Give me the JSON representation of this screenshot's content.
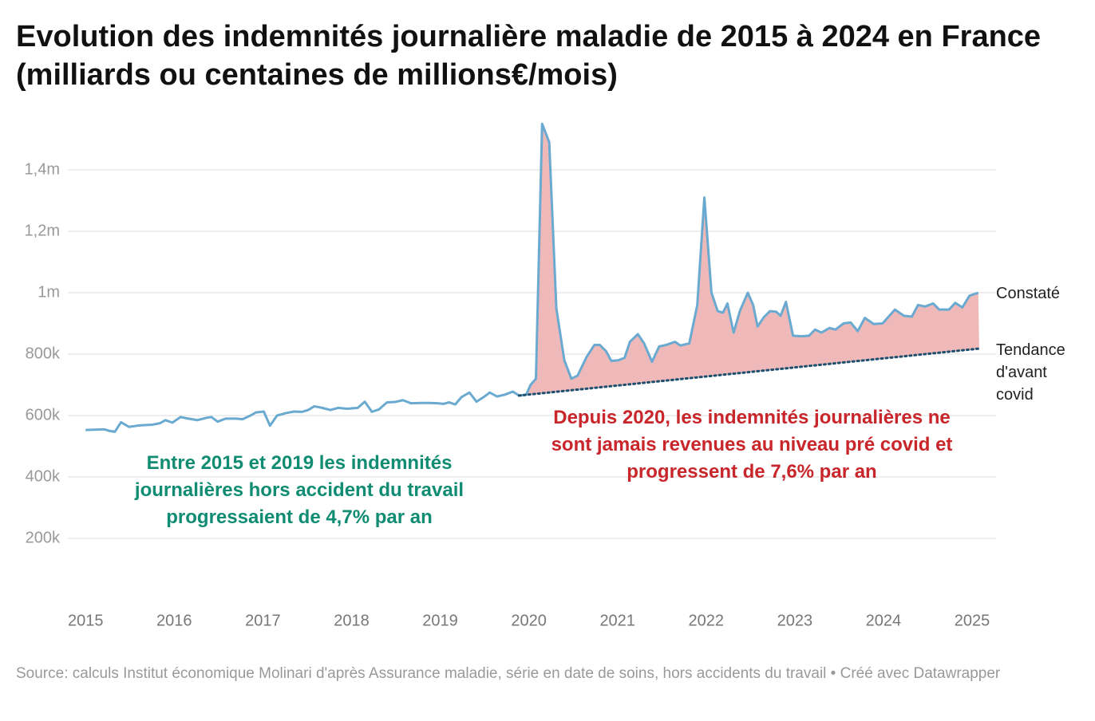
{
  "chart_data": {
    "type": "line",
    "title": "Evolution des indemnités journalière maladie de 2015 à 2024 en France (milliards ou centaines de millions€/mois)",
    "xlim": [
      2014.8,
      2025.27
    ],
    "xticks": [
      2015,
      2016,
      2017,
      2018,
      2019,
      2020,
      2021,
      2022,
      2023,
      2024,
      2025
    ],
    "ylim": [
      0,
      1600000
    ],
    "yticks": [
      {
        "value": 200000,
        "label": "200k"
      },
      {
        "value": 400000,
        "label": "400k"
      },
      {
        "value": 600000,
        "label": "600k"
      },
      {
        "value": 800000,
        "label": "800k"
      },
      {
        "value": 1000000,
        "label": "1m"
      },
      {
        "value": 1200000,
        "label": "1,2m"
      },
      {
        "value": 1400000,
        "label": "1,4m"
      }
    ],
    "grid": true,
    "area_color": "#f0b9b9",
    "series": [
      {
        "name": "Constaté",
        "color": "#6aaad0",
        "x": [
          2015.0,
          2015.1,
          2015.21,
          2015.27,
          2015.33,
          2015.4,
          2015.49,
          2015.61,
          2015.75,
          2015.84,
          2015.9,
          2015.98,
          2016.07,
          2016.16,
          2016.26,
          2016.37,
          2016.42,
          2016.49,
          2016.58,
          2016.7,
          2016.77,
          2016.86,
          2016.92,
          2017.01,
          2017.08,
          2017.16,
          2017.26,
          2017.35,
          2017.44,
          2017.51,
          2017.58,
          2017.67,
          2017.76,
          2017.85,
          2017.95,
          2018.07,
          2018.15,
          2018.23,
          2018.31,
          2018.4,
          2018.49,
          2018.58,
          2018.67,
          2018.79,
          2018.88,
          2018.97,
          2019.04,
          2019.1,
          2019.17,
          2019.24,
          2019.33,
          2019.41,
          2019.49,
          2019.56,
          2019.64,
          2019.73,
          2019.82,
          2019.89,
          2019.97,
          2020.02,
          2020.08,
          2020.15,
          2020.23,
          2020.31,
          2020.4,
          2020.48,
          2020.55,
          2020.65,
          2020.74,
          2020.8,
          2020.87,
          2020.93,
          2021.01,
          2021.08,
          2021.14,
          2021.23,
          2021.3,
          2021.39,
          2021.47,
          2021.55,
          2021.65,
          2021.71,
          2021.81,
          2021.9,
          2021.98,
          2022.06,
          2022.13,
          2022.19,
          2022.24,
          2022.31,
          2022.38,
          2022.47,
          2022.53,
          2022.58,
          2022.65,
          2022.72,
          2022.79,
          2022.84,
          2022.9,
          2022.98,
          2023.08,
          2023.16,
          2023.23,
          2023.3,
          2023.39,
          2023.46,
          2023.55,
          2023.63,
          2023.71,
          2023.79,
          2023.89,
          2023.99,
          2024.13,
          2024.23,
          2024.32,
          2024.39,
          2024.47,
          2024.56,
          2024.63,
          2024.74,
          2024.81,
          2024.89,
          2024.97,
          2025.07
        ],
        "values": [
          553000,
          554000,
          555000,
          550000,
          547000,
          578000,
          563000,
          568000,
          570000,
          575000,
          585000,
          577000,
          595000,
          590000,
          585000,
          593000,
          595000,
          580000,
          590000,
          590000,
          588000,
          600000,
          610000,
          613000,
          567000,
          600000,
          608000,
          613000,
          612000,
          618000,
          630000,
          625000,
          618000,
          625000,
          622000,
          625000,
          645000,
          612000,
          620000,
          643000,
          644000,
          650000,
          640000,
          641000,
          641000,
          640000,
          638000,
          643000,
          636000,
          660000,
          675000,
          645000,
          660000,
          675000,
          662000,
          668000,
          678000,
          665000,
          668000,
          700000,
          720000,
          1550000,
          1490000,
          950000,
          780000,
          720000,
          730000,
          790000,
          830000,
          830000,
          810000,
          778000,
          780000,
          788000,
          840000,
          865000,
          835000,
          775000,
          825000,
          830000,
          840000,
          828000,
          835000,
          960000,
          1310000,
          1000000,
          940000,
          935000,
          965000,
          870000,
          940000,
          1000000,
          960000,
          890000,
          920000,
          940000,
          938000,
          925000,
          970000,
          860000,
          858000,
          860000,
          880000,
          870000,
          885000,
          880000,
          900000,
          903000,
          875000,
          918000,
          898000,
          900000,
          945000,
          925000,
          922000,
          960000,
          955000,
          965000,
          945000,
          945000,
          967000,
          952000,
          990000,
          1000000
        ]
      },
      {
        "name": "Tendance d'avant covid",
        "color": "#1f4f6e",
        "dash": "dotted",
        "x": [
          2019.89,
          2025.08
        ],
        "values": [
          665000,
          818000
        ]
      }
    ],
    "annotations": [
      {
        "text": "Entre 2015 et 2019 les indemnités journalières hors accident du travail progressaient de 4,7% par an",
        "color": "#0f8c72"
      },
      {
        "text": "Depuis 2020, les indemnités journalières ne sont jamais revenues au niveau pré covid et progressent de 7,6% par an",
        "color": "#c8262b"
      }
    ],
    "source": "Source: calculs Institut économique Molinari d'après Assurance maladie, série en date de soins, hors accidents du travail • Créé avec Datawrapper"
  }
}
